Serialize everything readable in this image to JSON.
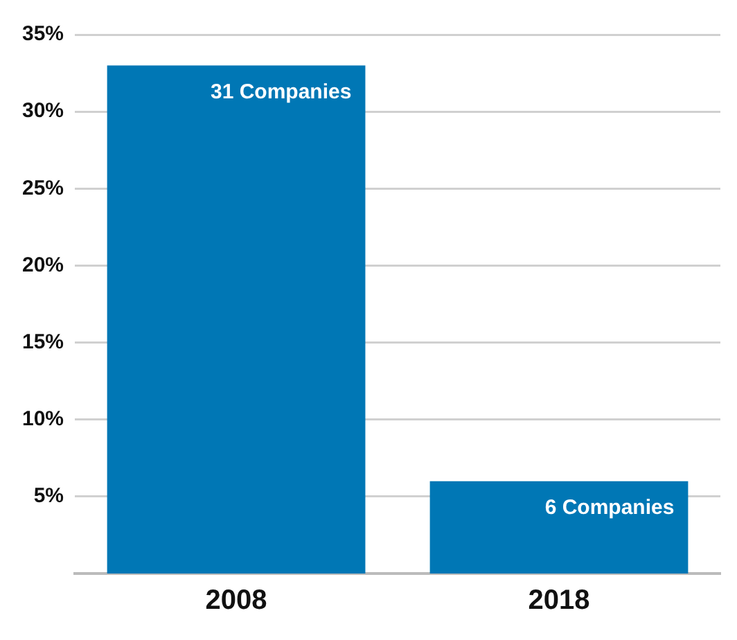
{
  "chart_data": {
    "type": "bar",
    "categories": [
      "2008",
      "2018"
    ],
    "values": [
      33,
      6
    ],
    "color": "#0077b5",
    "annotations": [
      {
        "text": "31 Companies",
        "x": "2008",
        "y": 33
      },
      {
        "text": "6 Companies",
        "x": "2018",
        "y": 6
      }
    ],
    "ylim": [
      0,
      35
    ],
    "yticks": [
      {
        "value": 5,
        "label": "5%"
      },
      {
        "value": 10,
        "label": "10%"
      },
      {
        "value": 15,
        "label": "15%"
      },
      {
        "value": 20,
        "label": "20%"
      },
      {
        "value": 25,
        "label": "25%"
      },
      {
        "value": 30,
        "label": "30%"
      },
      {
        "value": 35,
        "label": "35%"
      }
    ],
    "grid": "y",
    "legend": false
  }
}
